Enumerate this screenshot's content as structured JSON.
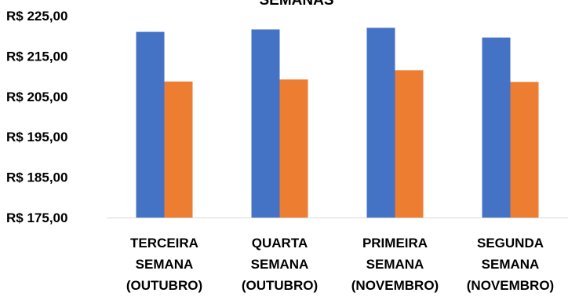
{
  "chart_data": {
    "type": "bar",
    "title": "SEMANAS",
    "categories": [
      [
        "TERCEIRA",
        "SEMANA",
        "(OUTUBRO)"
      ],
      [
        "QUARTA",
        "SEMANA",
        "(OUTUBRO)"
      ],
      [
        "PRIMEIRA",
        "SEMANA",
        "(NOVEMBRO)"
      ],
      [
        "SEGUNDA",
        "SEMANA",
        "(NOVEMBRO)"
      ]
    ],
    "series": [
      {
        "color": "#4472C4",
        "values": [
          221.0,
          221.6,
          222.0,
          219.6
        ]
      },
      {
        "color": "#ED7D31",
        "values": [
          208.7,
          209.2,
          211.5,
          208.6
        ]
      }
    ],
    "ylim": [
      175,
      225
    ],
    "yticks": [
      175,
      185,
      195,
      205,
      215,
      225
    ],
    "ytick_labels": [
      "R$ 175,00",
      "R$ 185,00",
      "R$ 195,00",
      "R$ 205,00",
      "R$ 215,00",
      "R$ 225,00"
    ],
    "xlabel": "",
    "ylabel": "",
    "grid": false,
    "legend": "none"
  }
}
